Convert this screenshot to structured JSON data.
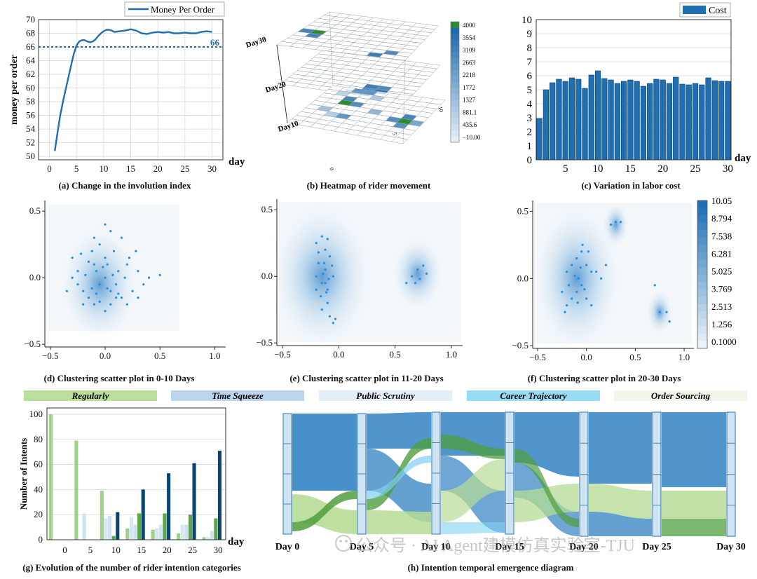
{
  "palette": {
    "blue": "#1f6fb2",
    "navy": "#0b4a7a",
    "mid_blue": "#3d8ac6",
    "light_blue": "#a9cbe6",
    "pale_blue": "#dbe9f5",
    "green": "#2e8b2e",
    "light_green": "#a8d58a",
    "cyan": "#7fd0f0",
    "grid": "#d9d9d9",
    "axis": "#333333"
  },
  "captions": {
    "a": "(a) Change in the involution index",
    "b": "(b) Heatmap of rider movement",
    "c": "(c) Variation in labor cost",
    "d": "(d) Clustering scatter plot in 0-10 Days",
    "e": "(e) Clustering scatter plot in 11-20 Days",
    "f": "(f) Clustering scatter plot in 20-30 Days",
    "g": "(g) Evolution of the number of rider intention categories",
    "h": "(h) Intention temporal emergence diagram"
  },
  "watermark": {
    "text": "公众号 · AI Agent建模仿真实验室-TJU"
  },
  "chart_data": [
    {
      "id": "a",
      "type": "line",
      "legend": "Money Per Order",
      "xlabel": "day",
      "ylabel": "money per order",
      "xlim": [
        -2,
        32
      ],
      "ylim": [
        49.5,
        70
      ],
      "xticks": [
        0,
        5,
        10,
        15,
        20,
        25,
        30
      ],
      "yticks": [
        50,
        52,
        54,
        56,
        58,
        60,
        62,
        64,
        66,
        68,
        70
      ],
      "x": [
        1,
        1.5,
        2,
        2.5,
        3,
        3.5,
        4,
        4.5,
        5,
        5.5,
        6,
        6.5,
        7,
        7.5,
        8,
        8.5,
        9,
        9.5,
        10,
        10.5,
        11,
        11.5,
        12,
        13,
        14,
        15,
        16,
        17,
        18,
        19,
        20,
        21,
        22,
        23,
        24,
        25,
        26,
        27,
        28,
        29,
        30
      ],
      "y": [
        50.8,
        53.5,
        56.0,
        58.0,
        59.8,
        61.5,
        63.3,
        65.0,
        66.2,
        66.8,
        67.0,
        67.0,
        66.8,
        66.7,
        66.8,
        67.1,
        67.6,
        68.0,
        68.3,
        68.5,
        68.5,
        68.4,
        68.2,
        68.3,
        68.4,
        68.6,
        68.4,
        68.0,
        67.9,
        68.1,
        68.2,
        68.1,
        68.2,
        68.0,
        68.0,
        68.1,
        68.0,
        68.0,
        68.2,
        68.3,
        68.2
      ],
      "reference_line": 66,
      "reference_label": "66"
    },
    {
      "id": "b",
      "type": "heatmap",
      "layer_labels": [
        "Day30",
        "Day20",
        "Day10"
      ],
      "axis_ticks": [
        "0",
        "5",
        "10"
      ],
      "colorbar_ticks": [
        "4000",
        "3554",
        "3109",
        "2663",
        "2218",
        "1772",
        "1327",
        "881.1",
        "435.6",
        "−10.00"
      ],
      "layers": [
        [
          [
            0,
            0,
            0,
            0,
            0,
            0,
            0,
            0,
            0,
            0
          ],
          [
            0,
            0,
            0,
            0,
            0,
            0,
            0,
            0,
            0,
            0
          ],
          [
            0,
            0,
            0,
            0,
            0,
            0,
            0,
            0,
            0,
            0
          ],
          [
            0,
            0,
            0,
            0,
            0,
            0,
            0,
            0,
            0,
            0
          ],
          [
            0,
            0,
            0,
            0,
            0,
            0,
            0,
            0,
            0,
            0
          ],
          [
            3000,
            4000,
            0,
            0,
            0,
            0,
            0,
            0,
            0,
            0
          ],
          [
            0,
            3000,
            0,
            0,
            0,
            0,
            0,
            0,
            0,
            0
          ],
          [
            0,
            0,
            0,
            0,
            0,
            0,
            0,
            0,
            0,
            0
          ],
          [
            0,
            0,
            0,
            0,
            0,
            0,
            0,
            0,
            2800,
            0
          ],
          [
            0,
            0,
            0,
            0,
            0,
            0,
            0,
            3200,
            0,
            0
          ]
        ],
        [
          [
            0,
            0,
            0,
            0,
            0,
            0,
            0,
            0,
            0,
            0
          ],
          [
            0,
            0,
            0,
            0,
            0,
            0,
            0,
            0,
            0,
            0
          ],
          [
            0,
            0,
            0,
            0,
            0,
            0,
            0,
            0,
            0,
            0
          ],
          [
            0,
            0,
            0,
            0,
            0,
            0,
            0,
            0,
            0,
            0
          ],
          [
            0,
            0,
            0,
            0,
            0,
            0,
            0,
            0,
            0,
            0
          ],
          [
            0,
            0,
            0,
            0,
            0,
            0,
            0,
            0,
            0,
            0
          ],
          [
            0,
            0,
            0,
            0,
            0,
            0,
            0,
            0,
            0,
            0
          ],
          [
            0,
            0,
            0,
            0,
            0,
            0,
            3200,
            2800,
            0,
            0
          ],
          [
            0,
            0,
            0,
            0,
            0,
            0,
            2800,
            3500,
            0,
            0
          ],
          [
            0,
            0,
            0,
            0,
            0,
            3000,
            3200,
            0,
            0,
            0
          ]
        ],
        [
          [
            0,
            0,
            2500,
            2500,
            0,
            0,
            0,
            0,
            0,
            0
          ],
          [
            0,
            600,
            0,
            0,
            900,
            0,
            0,
            0,
            0,
            0
          ],
          [
            0,
            0,
            3000,
            0,
            0,
            0,
            0,
            0,
            0,
            0
          ],
          [
            0,
            0,
            4000,
            2800,
            0,
            0,
            0,
            0,
            0,
            0
          ],
          [
            0,
            0,
            0,
            0,
            0,
            1500,
            0,
            0,
            3000,
            0
          ],
          [
            0,
            1200,
            0,
            0,
            0,
            0,
            0,
            2700,
            4000,
            2000
          ],
          [
            0,
            0,
            800,
            2500,
            0,
            0,
            0,
            0,
            2600,
            0
          ],
          [
            0,
            0,
            0,
            0,
            0,
            0,
            0,
            0,
            0,
            0
          ],
          [
            0,
            0,
            0,
            0,
            0,
            0,
            0,
            0,
            0,
            0
          ],
          [
            0,
            0,
            0,
            0,
            0,
            0,
            0,
            0,
            0,
            0
          ]
        ]
      ]
    },
    {
      "id": "c",
      "type": "bar",
      "legend": "Cost",
      "xlabel": "day",
      "xlim": [
        0.5,
        30.5
      ],
      "ylim": [
        0,
        10
      ],
      "xticks": [
        5,
        10,
        15,
        20,
        25,
        30
      ],
      "yticks": [
        0,
        1,
        2,
        3,
        4,
        5,
        6,
        7,
        8,
        9,
        10
      ],
      "categories": [
        1,
        2,
        3,
        4,
        5,
        6,
        7,
        8,
        9,
        10,
        11,
        12,
        13,
        14,
        15,
        16,
        17,
        18,
        19,
        20,
        21,
        22,
        23,
        24,
        25,
        26,
        27,
        28,
        29,
        30
      ],
      "values": [
        2.95,
        5.0,
        5.5,
        5.75,
        5.6,
        5.85,
        5.75,
        5.1,
        6.05,
        6.35,
        5.8,
        5.7,
        5.45,
        5.6,
        5.7,
        5.6,
        5.25,
        5.45,
        5.75,
        5.7,
        5.45,
        5.9,
        5.4,
        5.35,
        5.45,
        5.35,
        5.85,
        5.65,
        5.6,
        5.6
      ]
    },
    {
      "id": "d",
      "type": "scatter",
      "xlim": [
        -0.55,
        1.1
      ],
      "ylim": [
        -0.52,
        0.58
      ],
      "xticks": [
        -0.5,
        0.0,
        0.5,
        1.0
      ],
      "yticks": [
        -0.5,
        0.0,
        0.5
      ],
      "xticklabels": [
        "−0.5",
        "0.0",
        "0.5",
        "1.0"
      ],
      "yticklabels": [
        "−0.5",
        "0.0",
        "0.5"
      ],
      "density_centers": [
        [
          -0.05,
          -0.05,
          0.8
        ]
      ],
      "points": [
        [
          -0.3,
          0.0
        ],
        [
          -0.25,
          0.05
        ],
        [
          -0.2,
          -0.1
        ],
        [
          -0.15,
          0.12
        ],
        [
          -0.12,
          0.2
        ],
        [
          -0.1,
          0.3
        ],
        [
          -0.08,
          0.05
        ],
        [
          -0.05,
          -0.05
        ],
        [
          0.0,
          0.0
        ],
        [
          0.02,
          0.1
        ],
        [
          0.05,
          -0.1
        ],
        [
          0.08,
          0.2
        ],
        [
          0.1,
          -0.05
        ],
        [
          0.12,
          0.05
        ],
        [
          0.15,
          -0.15
        ],
        [
          0.2,
          0.1
        ],
        [
          0.25,
          -0.1
        ],
        [
          0.3,
          0.05
        ],
        [
          0.35,
          -0.05
        ],
        [
          0.4,
          0.0
        ],
        [
          0.5,
          0.02
        ],
        [
          0.0,
          0.4
        ],
        [
          0.05,
          0.35
        ],
        [
          -0.2,
          -0.2
        ],
        [
          -0.15,
          -0.15
        ],
        [
          -0.1,
          -0.2
        ],
        [
          -0.05,
          -0.18
        ],
        [
          0.0,
          -0.25
        ],
        [
          0.05,
          -0.2
        ],
        [
          0.1,
          -0.15
        ],
        [
          -0.25,
          -0.05
        ],
        [
          -0.18,
          0.02
        ],
        [
          -0.12,
          -0.08
        ],
        [
          -0.08,
          -0.12
        ],
        [
          -0.02,
          0.08
        ],
        [
          0.02,
          -0.08
        ],
        [
          0.07,
          0.02
        ],
        [
          0.12,
          -0.12
        ],
        [
          0.18,
          0.0
        ],
        [
          0.22,
          0.15
        ],
        [
          0.28,
          0.2
        ],
        [
          -0.3,
          0.15
        ],
        [
          -0.22,
          0.18
        ],
        [
          -0.05,
          0.25
        ],
        [
          0.15,
          0.3
        ],
        [
          0.2,
          -0.2
        ],
        [
          0.3,
          -0.15
        ],
        [
          -0.35,
          -0.1
        ],
        [
          -0.1,
          0.1
        ],
        [
          0.0,
          0.15
        ]
      ]
    },
    {
      "id": "e",
      "type": "scatter",
      "xlim": [
        -0.55,
        1.1
      ],
      "ylim": [
        -0.52,
        0.58
      ],
      "xticks": [
        -0.5,
        0.0,
        0.5,
        1.0
      ],
      "yticks": [
        -0.5,
        0.0,
        0.5
      ],
      "xticklabels": [
        "−0.5",
        "0.0",
        "0.5",
        "1.0"
      ],
      "yticklabels": [
        "−0.5",
        "0.0",
        "0.5"
      ],
      "density_centers": [
        [
          -0.15,
          0.0,
          1.0
        ],
        [
          0.7,
          0.02,
          0.5
        ]
      ],
      "points": [
        [
          -0.2,
          0.25
        ],
        [
          -0.15,
          0.3
        ],
        [
          -0.12,
          0.2
        ],
        [
          -0.18,
          0.1
        ],
        [
          -0.2,
          0.0
        ],
        [
          -0.15,
          -0.05
        ],
        [
          -0.1,
          -0.1
        ],
        [
          -0.12,
          0.05
        ],
        [
          -0.08,
          0.15
        ],
        [
          -0.05,
          0.0
        ],
        [
          -0.1,
          -0.2
        ],
        [
          -0.15,
          -0.25
        ],
        [
          -0.08,
          -0.3
        ],
        [
          -0.05,
          -0.35
        ],
        [
          -0.12,
          -0.05
        ],
        [
          -0.2,
          -0.1
        ],
        [
          -0.18,
          0.18
        ],
        [
          -0.1,
          0.28
        ],
        [
          -0.13,
          0.1
        ],
        [
          -0.16,
          -0.15
        ],
        [
          -0.06,
          0.08
        ],
        [
          -0.09,
          -0.02
        ],
        [
          -0.14,
          0.02
        ],
        [
          -0.11,
          -0.12
        ],
        [
          0.65,
          0.0
        ],
        [
          0.7,
          0.05
        ],
        [
          0.72,
          -0.02
        ],
        [
          0.75,
          0.08
        ],
        [
          0.68,
          -0.05
        ],
        [
          0.78,
          0.02
        ],
        [
          0.6,
          -0.05
        ],
        [
          -0.03,
          -0.32
        ]
      ]
    },
    {
      "id": "f",
      "type": "scatter",
      "xlim": [
        -0.55,
        1.1
      ],
      "ylim": [
        -0.52,
        0.58
      ],
      "xticks": [
        -0.5,
        0.0,
        0.5,
        1.0
      ],
      "yticks": [
        -0.5,
        0.0,
        0.5
      ],
      "xticklabels": [
        "−0.5",
        "0.0",
        "0.5",
        "1.0"
      ],
      "yticklabels": [
        "−0.5",
        "0.0",
        "0.5"
      ],
      "colorbar_ticks": [
        "10.05",
        "8.794",
        "7.538",
        "6.281",
        "5.025",
        "3.769",
        "2.513",
        "1.256",
        "0.1000"
      ],
      "density_centers": [
        [
          -0.1,
          0.0,
          1.0
        ],
        [
          0.3,
          0.4,
          0.3
        ],
        [
          0.75,
          -0.25,
          0.3
        ]
      ],
      "points": [
        [
          -0.2,
          0.05
        ],
        [
          -0.15,
          0.1
        ],
        [
          -0.1,
          0.15
        ],
        [
          -0.08,
          0.0
        ],
        [
          -0.05,
          -0.05
        ],
        [
          -0.1,
          -0.1
        ],
        [
          -0.15,
          -0.15
        ],
        [
          -0.2,
          -0.2
        ],
        [
          -0.05,
          0.2
        ],
        [
          0.0,
          0.1
        ],
        [
          0.05,
          0.05
        ],
        [
          0.0,
          -0.15
        ],
        [
          0.05,
          -0.2
        ],
        [
          -0.12,
          0.02
        ],
        [
          -0.18,
          -0.05
        ],
        [
          -0.06,
          0.08
        ],
        [
          -0.02,
          -0.08
        ],
        [
          0.1,
          0.05
        ],
        [
          0.15,
          0.0
        ],
        [
          0.2,
          0.1
        ],
        [
          0.25,
          0.4
        ],
        [
          0.3,
          0.42
        ],
        [
          0.35,
          0.42
        ],
        [
          0.7,
          -0.05
        ],
        [
          0.75,
          -0.25
        ],
        [
          0.82,
          -0.25
        ],
        [
          0.85,
          -0.32
        ],
        [
          -0.22,
          -0.25
        ],
        [
          -0.25,
          -0.1
        ],
        [
          -0.04,
          0.25
        ],
        [
          0.02,
          0.2
        ],
        [
          -0.09,
          -0.18
        ]
      ]
    },
    {
      "id": "g",
      "type": "bar",
      "ylabel": "Number of Intents",
      "xlabel": "day",
      "ylim": [
        0,
        105
      ],
      "yticks": [
        0,
        20,
        40,
        60,
        80,
        100
      ],
      "categories": [
        "0",
        "5",
        "10",
        "15",
        "20",
        "25",
        "30"
      ],
      "series": [
        {
          "name": "Regularly",
          "values": [
            100,
            79,
            39,
            9,
            8,
            5,
            2
          ]
        },
        {
          "name": "Time Squeeze",
          "values": [
            0,
            0,
            17,
            18,
            9,
            12,
            2
          ]
        },
        {
          "name": "Public Scrutiny",
          "values": [
            0,
            21,
            19,
            12,
            12,
            12,
            7
          ]
        },
        {
          "name": "Career Trajectory",
          "values": [
            0,
            0,
            3,
            21,
            21,
            20,
            17
          ]
        },
        {
          "name": "Order Sourcing",
          "values": [
            0,
            0,
            22,
            40,
            53,
            61,
            71
          ]
        }
      ],
      "legend": [
        "Regularly",
        "Time Squeeze",
        "Public Scrutiny",
        "Career Trajectory",
        "Order Sourcing"
      ]
    },
    {
      "id": "h",
      "type": "sankey",
      "categories": [
        "Day 0",
        "Day 5",
        "Day 10",
        "Day 15",
        "Day 20",
        "Day 25",
        "Day 30"
      ]
    }
  ]
}
